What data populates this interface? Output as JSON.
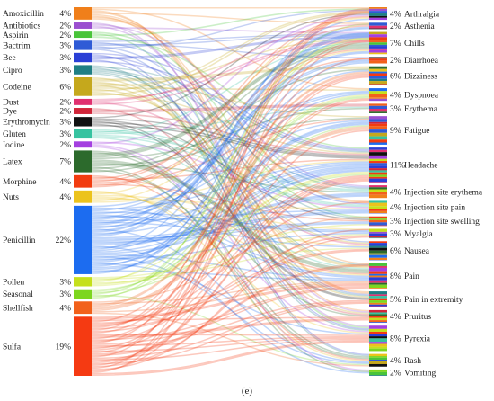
{
  "caption": "(e)",
  "chart_data": {
    "type": "sankey",
    "source_nodes": [
      {
        "name": "Amoxicillin",
        "pct": "4%",
        "value": 4,
        "color": "#f07f1a"
      },
      {
        "name": "Antibiotics",
        "pct": "2%",
        "value": 2,
        "color": "#9b4fd0"
      },
      {
        "name": "Aspirin",
        "pct": "2%",
        "value": 2,
        "color": "#49c43a"
      },
      {
        "name": "Bactrim",
        "pct": "3%",
        "value": 3,
        "color": "#2f5bd6"
      },
      {
        "name": "Bee",
        "pct": "3%",
        "value": 3,
        "color": "#2a3fd6"
      },
      {
        "name": "Cipro",
        "pct": "3%",
        "value": 3,
        "color": "#1f7f84"
      },
      {
        "name": "Codeine",
        "pct": "6%",
        "value": 6,
        "color": "#c5a81c"
      },
      {
        "name": "Dust",
        "pct": "2%",
        "value": 2,
        "color": "#e0306f"
      },
      {
        "name": "Dye",
        "pct": "2%",
        "value": 2,
        "color": "#d1263a"
      },
      {
        "name": "Erythromycin",
        "pct": "3%",
        "value": 3,
        "color": "#111111"
      },
      {
        "name": "Gluten",
        "pct": "3%",
        "value": 3,
        "color": "#37c3a0"
      },
      {
        "name": "Iodine",
        "pct": "2%",
        "value": 2,
        "color": "#a43fe0"
      },
      {
        "name": "Latex",
        "pct": "7%",
        "value": 7,
        "color": "#2c6a2c"
      },
      {
        "name": "Morphine",
        "pct": "4%",
        "value": 4,
        "color": "#f23c10"
      },
      {
        "name": "Nuts",
        "pct": "4%",
        "value": 4,
        "color": "#ecc31c"
      },
      {
        "name": "Penicillin",
        "pct": "22%",
        "value": 22,
        "color": "#1c6cf0"
      },
      {
        "name": "Pollen",
        "pct": "3%",
        "value": 3,
        "color": "#c5e01c"
      },
      {
        "name": "Seasonal",
        "pct": "3%",
        "value": 3,
        "color": "#7dd61f"
      },
      {
        "name": "Shellfish",
        "pct": "4%",
        "value": 4,
        "color": "#f2611b"
      },
      {
        "name": "Sulfa",
        "pct": "19%",
        "value": 19,
        "color": "#f53a12"
      }
    ],
    "target_nodes": [
      {
        "name": "Arthralgia",
        "pct": "4%",
        "value": 4
      },
      {
        "name": "Asthenia",
        "pct": "2%",
        "value": 2
      },
      {
        "name": "Chills",
        "pct": "7%",
        "value": 7
      },
      {
        "name": "Diarrhoea",
        "pct": "2%",
        "value": 2
      },
      {
        "name": "Dizziness",
        "pct": "6%",
        "value": 6
      },
      {
        "name": "Dyspnoea",
        "pct": "4%",
        "value": 4
      },
      {
        "name": "Erythema",
        "pct": "3%",
        "value": 3
      },
      {
        "name": "Fatigue",
        "pct": "9%",
        "value": 9
      },
      {
        "name": "Headache",
        "pct": "11%",
        "value": 11
      },
      {
        "name": "Injection site erythema",
        "pct": "4%",
        "value": 4
      },
      {
        "name": "Injection site pain",
        "pct": "4%",
        "value": 4
      },
      {
        "name": "Injection site swelling",
        "pct": "3%",
        "value": 3
      },
      {
        "name": "Myalgia",
        "pct": "3%",
        "value": 3
      },
      {
        "name": "Nausea",
        "pct": "6%",
        "value": 6
      },
      {
        "name": "Pain",
        "pct": "8%",
        "value": 8
      },
      {
        "name": "Pain in extremity",
        "pct": "5%",
        "value": 5
      },
      {
        "name": "Pruritus",
        "pct": "4%",
        "value": 4
      },
      {
        "name": "Pyrexia",
        "pct": "8%",
        "value": 8
      },
      {
        "name": "Rash",
        "pct": "4%",
        "value": 4
      },
      {
        "name": "Vomiting",
        "pct": "2%",
        "value": 2
      }
    ]
  }
}
